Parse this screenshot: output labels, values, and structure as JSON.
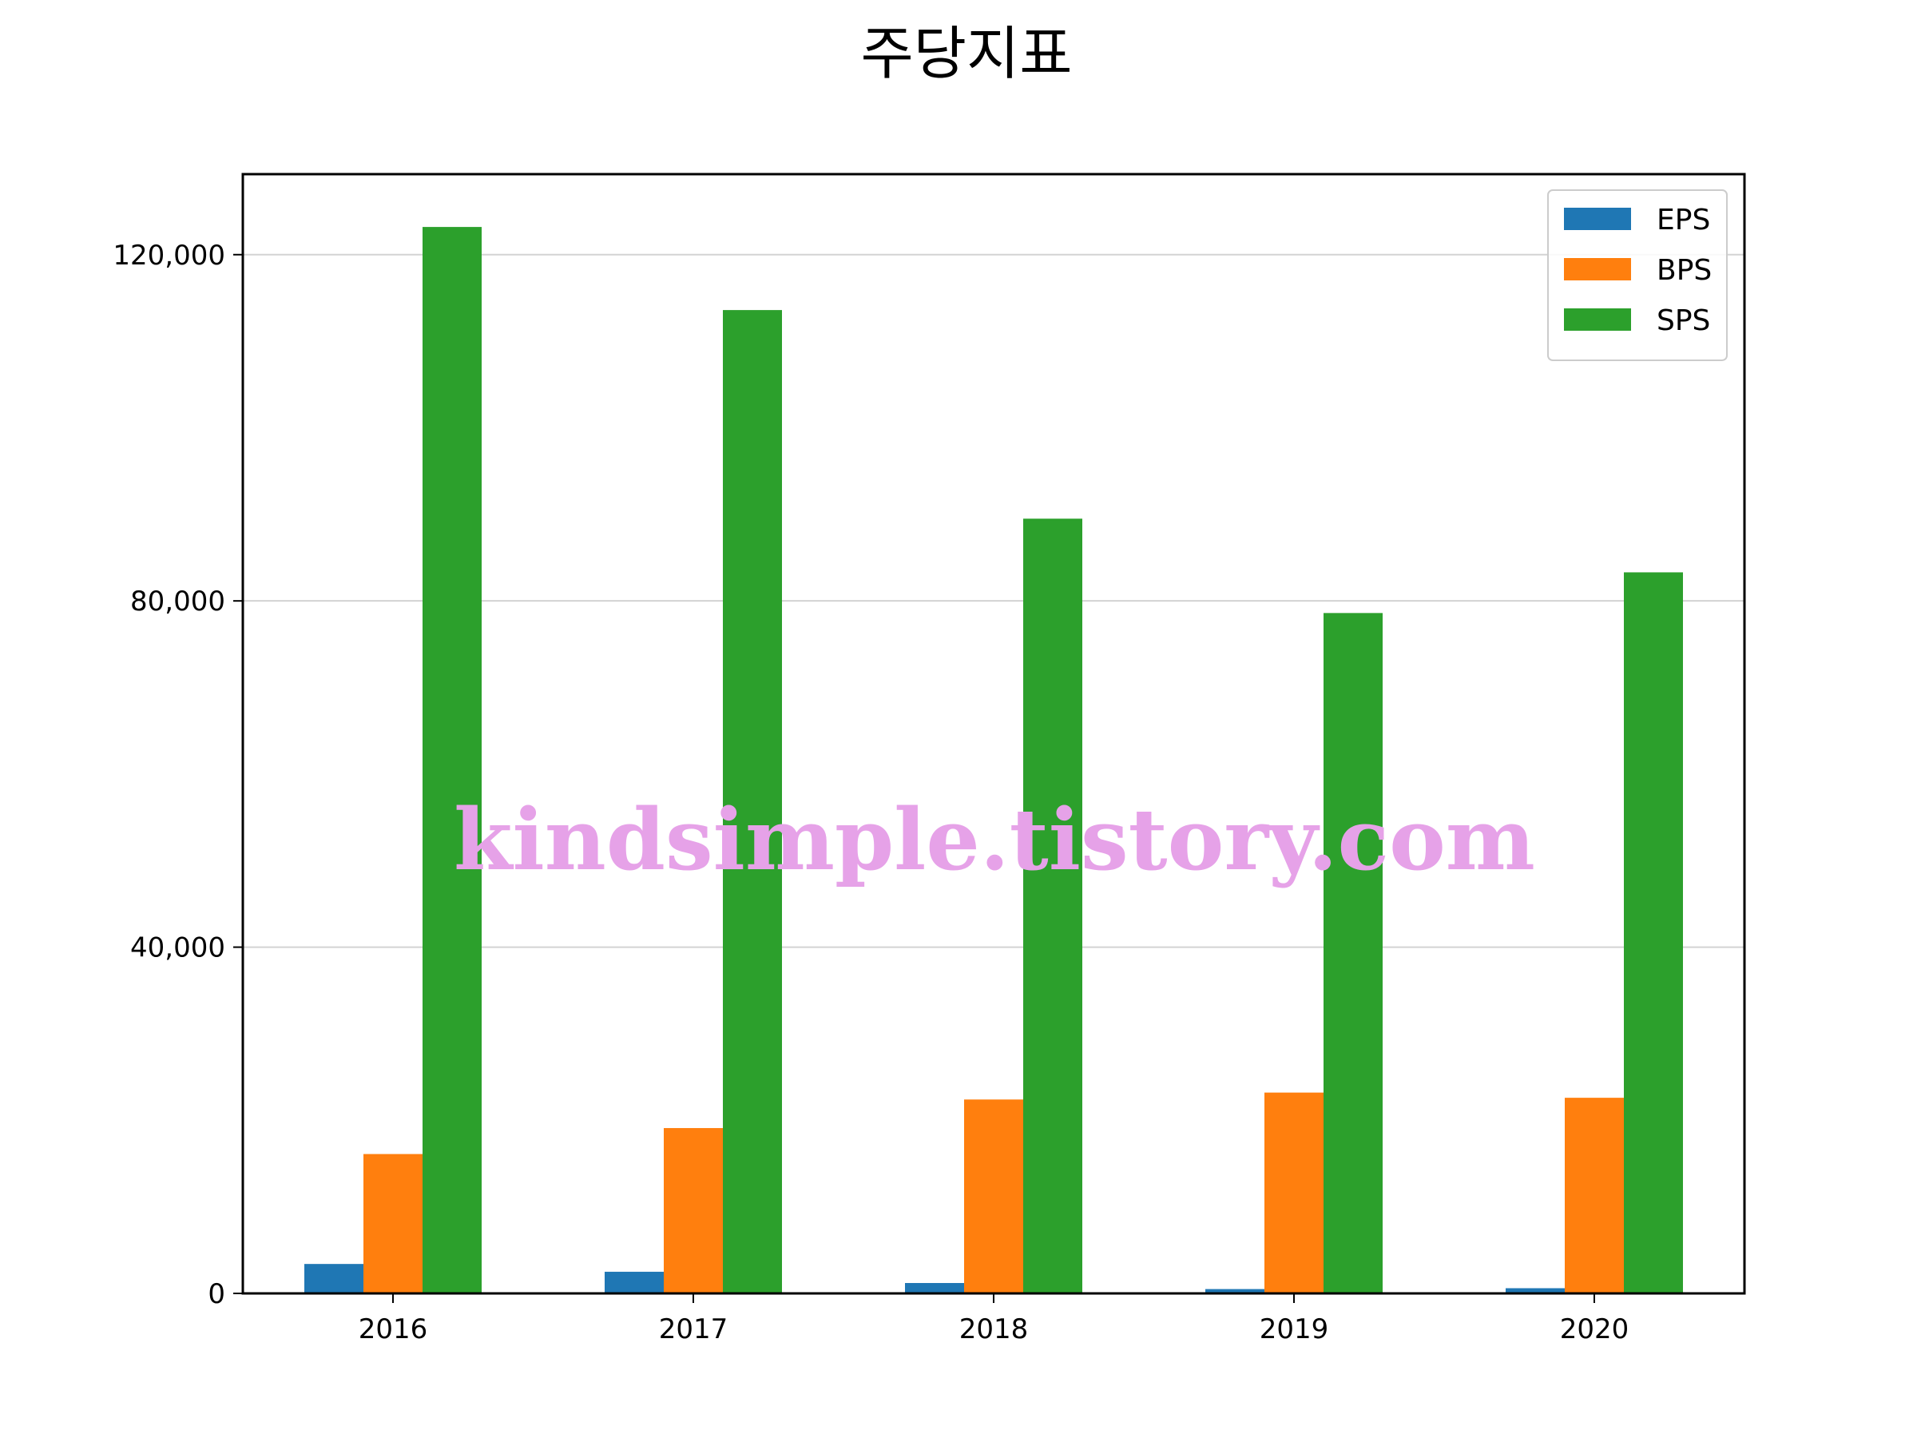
{
  "chart_data": {
    "type": "bar",
    "title": "주당지표",
    "categories": [
      "2016",
      "2017",
      "2018",
      "2019",
      "2020"
    ],
    "series": [
      {
        "name": "EPS",
        "color": "#1f77b4",
        "values": [
          3400,
          2500,
          1200,
          500,
          600
        ]
      },
      {
        "name": "BPS",
        "color": "#ff7f0e",
        "values": [
          16100,
          19100,
          22400,
          23200,
          22600
        ]
      },
      {
        "name": "SPS",
        "color": "#2ca02c",
        "values": [
          123200,
          113600,
          89500,
          78600,
          83300
        ]
      }
    ],
    "yticks": [
      0,
      40000,
      80000,
      120000
    ],
    "ytick_labels": [
      "0",
      "40,000",
      "80,000",
      "120,000"
    ],
    "ylim": [
      0,
      129300
    ],
    "grid": "horizontal",
    "legend": "top-right"
  },
  "watermark": "kindsimple.tistory.com"
}
